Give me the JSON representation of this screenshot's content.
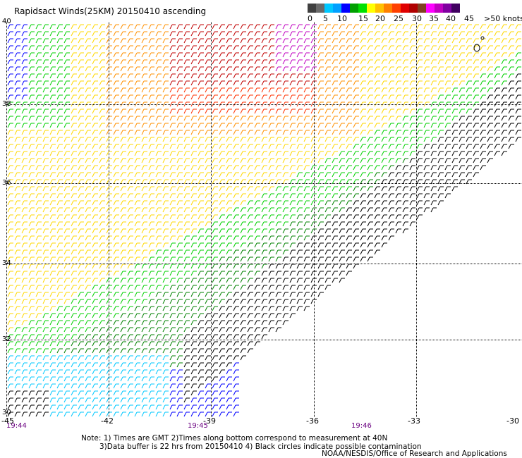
{
  "title": "Rapidsact Winds(25KM) 20150410 ascending",
  "scale": {
    "labels": [
      "0",
      "5",
      "10",
      "15",
      "20",
      "25",
      "30",
      "35",
      "40",
      "45",
      ">50 knots"
    ],
    "colors": [
      "#404040",
      "#6a6a6a",
      "#00c8ff",
      "#00a0ff",
      "#0000ff",
      "#00a000",
      "#00e000",
      "#ffff00",
      "#ffc000",
      "#ff8000",
      "#ff4000",
      "#e00000",
      "#b00000",
      "#804020",
      "#ff00ff",
      "#c000c0",
      "#8000a0",
      "#400060"
    ]
  },
  "axes": {
    "y_labels": [
      "40",
      "38",
      "36",
      "34",
      "32",
      "30"
    ],
    "x_labels": [
      "-45",
      "-42",
      "-39",
      "-36",
      "-33",
      "-30"
    ],
    "time_labels": [
      "19:44",
      "19:45",
      "19:46"
    ]
  },
  "notes": {
    "line1": "Note: 1) Times are GMT 2)Times along bottom correspond to measurement at 40N",
    "line2": "3)Data buffer is 22 hrs from 20150410 4) Black circles indicate possible contamination"
  },
  "credit": "NOAA/NESDIS/Office of Research and Applications"
}
